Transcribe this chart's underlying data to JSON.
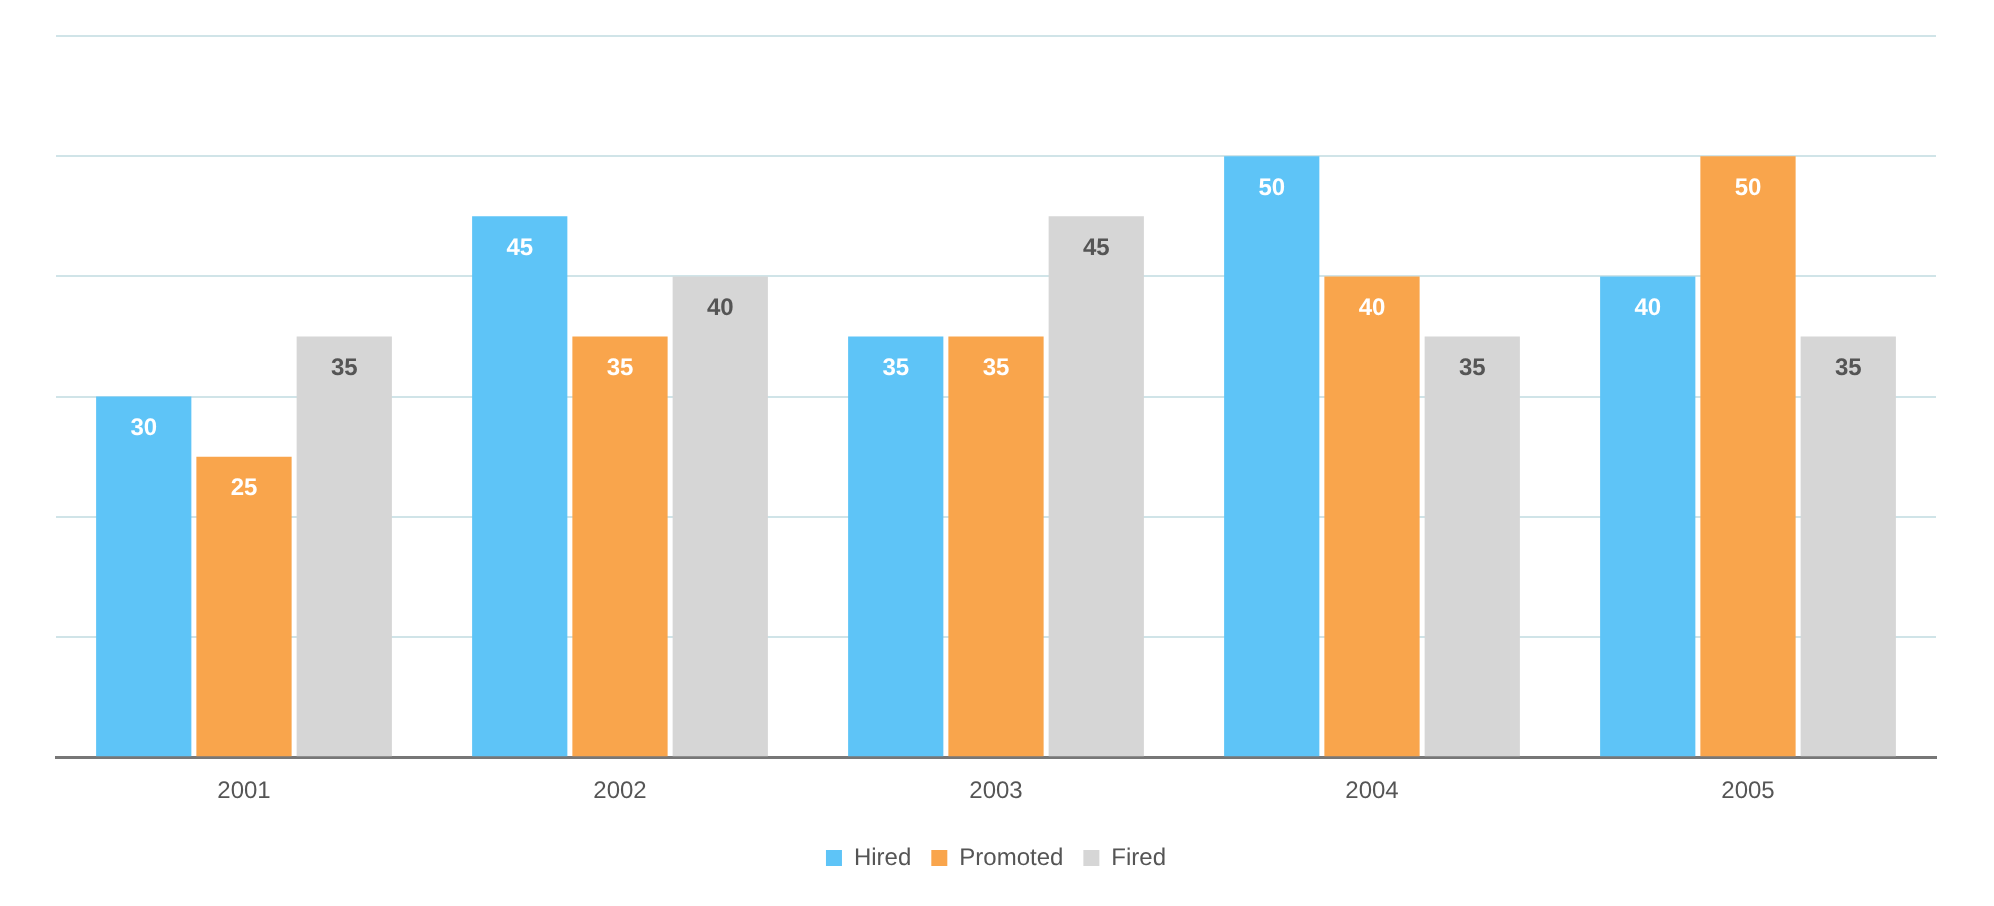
{
  "chart_data": {
    "type": "bar",
    "categories": [
      "2001",
      "2002",
      "2003",
      "2004",
      "2005"
    ],
    "series": [
      {
        "name": "Hired",
        "color": "#5ec4f7",
        "values": [
          30,
          45,
          35,
          50,
          40
        ]
      },
      {
        "name": "Promoted",
        "color": "#f9a54c",
        "values": [
          25,
          35,
          35,
          40,
          50
        ]
      },
      {
        "name": "Fired",
        "color": "#d6d6d6",
        "values": [
          35,
          40,
          45,
          35,
          35
        ]
      }
    ],
    "ylim": [
      0,
      60
    ],
    "yticks": [
      {
        "value": 0,
        "label": null
      },
      {
        "value": 10,
        "label": null
      },
      {
        "value": 20,
        "label": null
      },
      {
        "value": 30,
        "label": null
      },
      {
        "value": 40,
        "label": null
      },
      {
        "value": 50,
        "label": null
      },
      {
        "value": 60,
        "label": null
      }
    ],
    "tick_labels": "x",
    "grid": "y",
    "data_labels": true,
    "legend": "bottom"
  }
}
